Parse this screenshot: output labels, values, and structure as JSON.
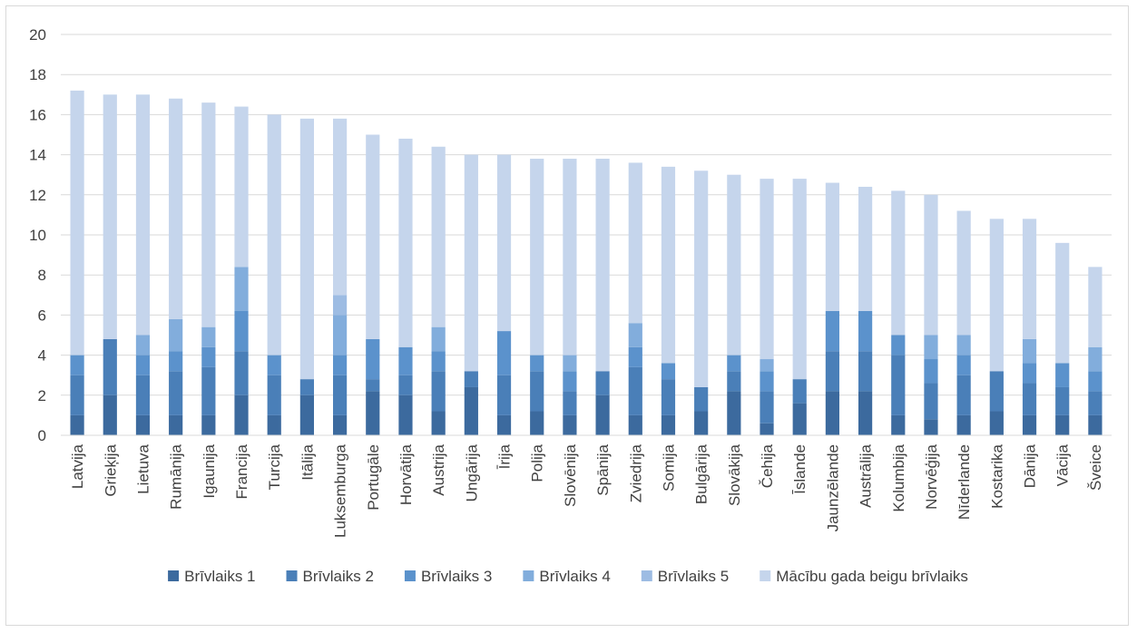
{
  "chart_data": {
    "type": "bar",
    "stacked": true,
    "title": "",
    "xlabel": "",
    "ylabel": "",
    "ylim": [
      0,
      20
    ],
    "yticks": [
      0,
      2,
      4,
      6,
      8,
      10,
      12,
      14,
      16,
      18,
      20
    ],
    "grid": true,
    "legend_position": "bottom",
    "categories": [
      "Latvija",
      "Grieķija",
      "Lietuva",
      "Rumānija",
      "Igaunija",
      "Francija",
      "Turcija",
      "Itālija",
      "Luksemburga",
      "Portugāle",
      "Horvātija",
      "Austrija",
      "Ungārija",
      "Īrija",
      "Polija",
      "Slovēnija",
      "Spānija",
      "Zviedrija",
      "Somija",
      "Bulgārija",
      "Slovākija",
      "Čehija",
      "Īslande",
      "Jaunzēlande",
      "Austrālija",
      "Kolumbija",
      "Norvēģija",
      "Nīderlande",
      "Kostarika",
      "Dānija",
      "Vācija",
      "Šveice"
    ],
    "series": [
      {
        "name": "Brīvlaiks 1",
        "color": "#3c6a9e",
        "values": [
          1,
          2,
          1,
          1,
          1,
          2,
          1,
          2,
          1,
          2.2,
          2,
          1.2,
          2.4,
          1,
          1.2,
          1,
          2,
          1,
          1,
          1.2,
          2.2,
          0.6,
          1.6,
          2.2,
          2.2,
          1,
          0.8,
          1,
          1.2,
          1,
          1,
          1
        ]
      },
      {
        "name": "Brīvlaiks 2",
        "color": "#4a7fb8",
        "values": [
          2,
          2.8,
          2,
          2.2,
          2.4,
          2.2,
          2,
          0.8,
          2,
          0.6,
          1,
          2,
          0.8,
          2,
          2,
          1.2,
          1.2,
          2.4,
          1.8,
          1.2,
          1,
          1.6,
          1.2,
          2,
          2,
          3,
          1.8,
          2,
          2,
          1.6,
          1.4,
          1.2
        ]
      },
      {
        "name": "Brīvlaiks 3",
        "color": "#5b92cc",
        "values": [
          1,
          0,
          1,
          1,
          1,
          2,
          1,
          0,
          1,
          2,
          1.4,
          1,
          0,
          2.2,
          0.8,
          1,
          0,
          1,
          0.8,
          0,
          0.8,
          1,
          0,
          2,
          2,
          1,
          1.2,
          1,
          0,
          1,
          1.2,
          1
        ]
      },
      {
        "name": "Brīvlaiks 4",
        "color": "#82addc",
        "values": [
          0,
          0,
          1,
          1.6,
          1,
          2.2,
          0,
          0,
          2,
          0,
          0,
          1.2,
          0,
          0,
          0,
          0.8,
          0,
          1.2,
          0,
          0,
          0,
          0.6,
          0,
          0,
          0,
          0,
          1.2,
          1,
          0,
          1.2,
          0,
          1.2
        ]
      },
      {
        "name": "Brīvlaiks 5",
        "color": "#9dbce3",
        "values": [
          0,
          0,
          0,
          0,
          0,
          0,
          0,
          0,
          1,
          0,
          0,
          0,
          0,
          0,
          0,
          0,
          0,
          0,
          0,
          0,
          0,
          0,
          0,
          0,
          0,
          0,
          0,
          0,
          0,
          0,
          0,
          0
        ]
      },
      {
        "name": "Mācību gada beigu brīvlaiks",
        "color": "#c5d5ec",
        "values": [
          13.2,
          12.2,
          12,
          11,
          11.2,
          8,
          12,
          13,
          8.8,
          10.2,
          10.4,
          9,
          10.8,
          8.8,
          9.8,
          9.8,
          10.6,
          8,
          9.8,
          10.8,
          9,
          9,
          10,
          6.4,
          6.2,
          7.2,
          7,
          6.2,
          7.6,
          6,
          6,
          4
        ]
      }
    ]
  }
}
